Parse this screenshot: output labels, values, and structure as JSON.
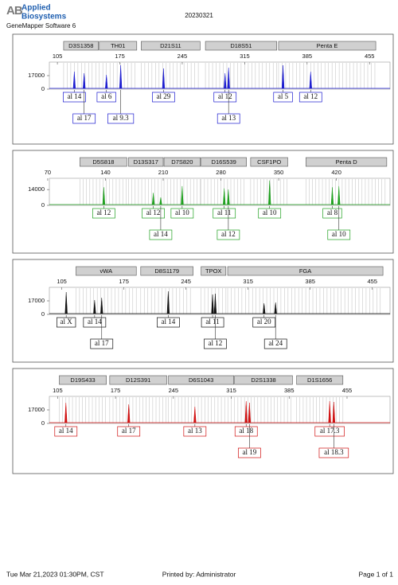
{
  "header": {
    "logo_mark": "AB",
    "logo_line1": "Applied",
    "logo_line2": "Biosystems",
    "software": "GeneMapper Software 6",
    "date": "20230321"
  },
  "panels": [
    {
      "color": "#1c1cd0",
      "xlim": [
        96,
        478
      ],
      "xticks": [
        105,
        175,
        245,
        315,
        385,
        455
      ],
      "ylim": [
        0,
        34000
      ],
      "yticks": [
        0,
        17000
      ],
      "loci": [
        {
          "name": "D3S1358",
          "start": 112,
          "end": 151
        },
        {
          "name": "TH01",
          "start": 152,
          "end": 194
        },
        {
          "name": "D21S11",
          "start": 199,
          "end": 265
        },
        {
          "name": "D18S51",
          "start": 271,
          "end": 351
        },
        {
          "name": "Penta E",
          "start": 353,
          "end": 462
        }
      ],
      "alleles": [
        {
          "label": "al 14",
          "size": 124,
          "height": 22000
        },
        {
          "label": "al 17",
          "size": 135,
          "height": 20000
        },
        {
          "label": "al 6",
          "size": 160,
          "height": 18000
        },
        {
          "label": "al 9.3",
          "size": 176,
          "height": 30000
        },
        {
          "label": "al 29",
          "size": 224,
          "height": 26000
        },
        {
          "label": "al 12",
          "size": 293,
          "height": 20000
        },
        {
          "label": "al 13",
          "size": 297,
          "height": 27000
        },
        {
          "label": "al 5",
          "size": 358,
          "height": 30000
        },
        {
          "label": "al 12",
          "size": 389,
          "height": 22000
        }
      ]
    },
    {
      "color": "#1fa01f",
      "xlim": [
        72,
        485
      ],
      "xticks": [
        70,
        140,
        210,
        280,
        350,
        420
      ],
      "ylim": [
        0,
        24000
      ],
      "yticks": [
        0,
        14000
      ],
      "loci": [
        {
          "name": "D5S818",
          "start": 109,
          "end": 166
        },
        {
          "name": "D13S317",
          "start": 168,
          "end": 210
        },
        {
          "name": "D7S820",
          "start": 211,
          "end": 255
        },
        {
          "name": "D16S539",
          "start": 256,
          "end": 311
        },
        {
          "name": "CSF1PO",
          "start": 316,
          "end": 361
        },
        {
          "name": "Penta D",
          "start": 383,
          "end": 481
        }
      ],
      "alleles": [
        {
          "label": "al 12",
          "size": 138,
          "height": 16000
        },
        {
          "label": "al 12",
          "size": 198,
          "height": 11000
        },
        {
          "label": "al 14",
          "size": 207,
          "height": 7000
        },
        {
          "label": "al 10",
          "size": 233,
          "height": 17000
        },
        {
          "label": "al 11",
          "size": 284,
          "height": 15000
        },
        {
          "label": "al 12",
          "size": 289,
          "height": 14000
        },
        {
          "label": "al 10",
          "size": 339,
          "height": 22000
        },
        {
          "label": "al 8",
          "size": 415,
          "height": 16000
        },
        {
          "label": "al 10",
          "size": 423,
          "height": 17000
        }
      ]
    },
    {
      "color": "#111111",
      "xlim": [
        91,
        475
      ],
      "xticks": [
        105,
        175,
        245,
        315,
        385,
        455
      ],
      "ylim": [
        0,
        34000
      ],
      "yticks": [
        0,
        17000
      ],
      "loci": [
        {
          "name": "vWA",
          "start": 121,
          "end": 189
        },
        {
          "name": "D8S1179",
          "start": 194,
          "end": 253
        },
        {
          "name": "TPOX",
          "start": 262,
          "end": 290
        },
        {
          "name": "FGA",
          "start": 292,
          "end": 467
        }
      ],
      "alleles": [
        {
          "label": "al X",
          "size": 110,
          "height": 28000
        },
        {
          "label": "al 14",
          "size": 142,
          "height": 18000
        },
        {
          "label": "al 17",
          "size": 150,
          "height": 21000
        },
        {
          "label": "al 14",
          "size": 225,
          "height": 29000
        },
        {
          "label": "al 11",
          "size": 275,
          "height": 25000
        },
        {
          "label": "al 12",
          "size": 278,
          "height": 26000
        },
        {
          "label": "al 20",
          "size": 333,
          "height": 14000
        },
        {
          "label": "al 24",
          "size": 346,
          "height": 15000
        }
      ]
    },
    {
      "color": "#d01010",
      "xlim": [
        95,
        507
      ],
      "xticks": [
        105,
        175,
        245,
        315,
        385,
        455
      ],
      "ylim": [
        0,
        34000
      ],
      "yticks": [
        0,
        17000
      ],
      "loci": [
        {
          "name": "D19S433",
          "start": 107,
          "end": 164
        },
        {
          "name": "D12S391",
          "start": 168,
          "end": 237
        },
        {
          "name": "D6S1043",
          "start": 239,
          "end": 318
        },
        {
          "name": "D2S1338",
          "start": 319,
          "end": 389
        },
        {
          "name": "D1S1656",
          "start": 394,
          "end": 450
        }
      ],
      "alleles": [
        {
          "label": "al 14",
          "size": 115,
          "height": 26000
        },
        {
          "label": "al 17",
          "size": 191,
          "height": 24000
        },
        {
          "label": "al 13",
          "size": 271,
          "height": 21000
        },
        {
          "label": "al 18",
          "size": 333,
          "height": 28000
        },
        {
          "label": "al 19",
          "size": 337,
          "height": 26000
        },
        {
          "label": "al 17.3",
          "size": 434,
          "height": 28000
        },
        {
          "label": "al 18.3",
          "size": 439,
          "height": 27000
        }
      ]
    }
  ],
  "footer": {
    "timestamp": "Tue Mar 21,2023 01:30PM, CST",
    "printed_by": "Printed by: Administrator",
    "page": "Page 1 of 1"
  }
}
